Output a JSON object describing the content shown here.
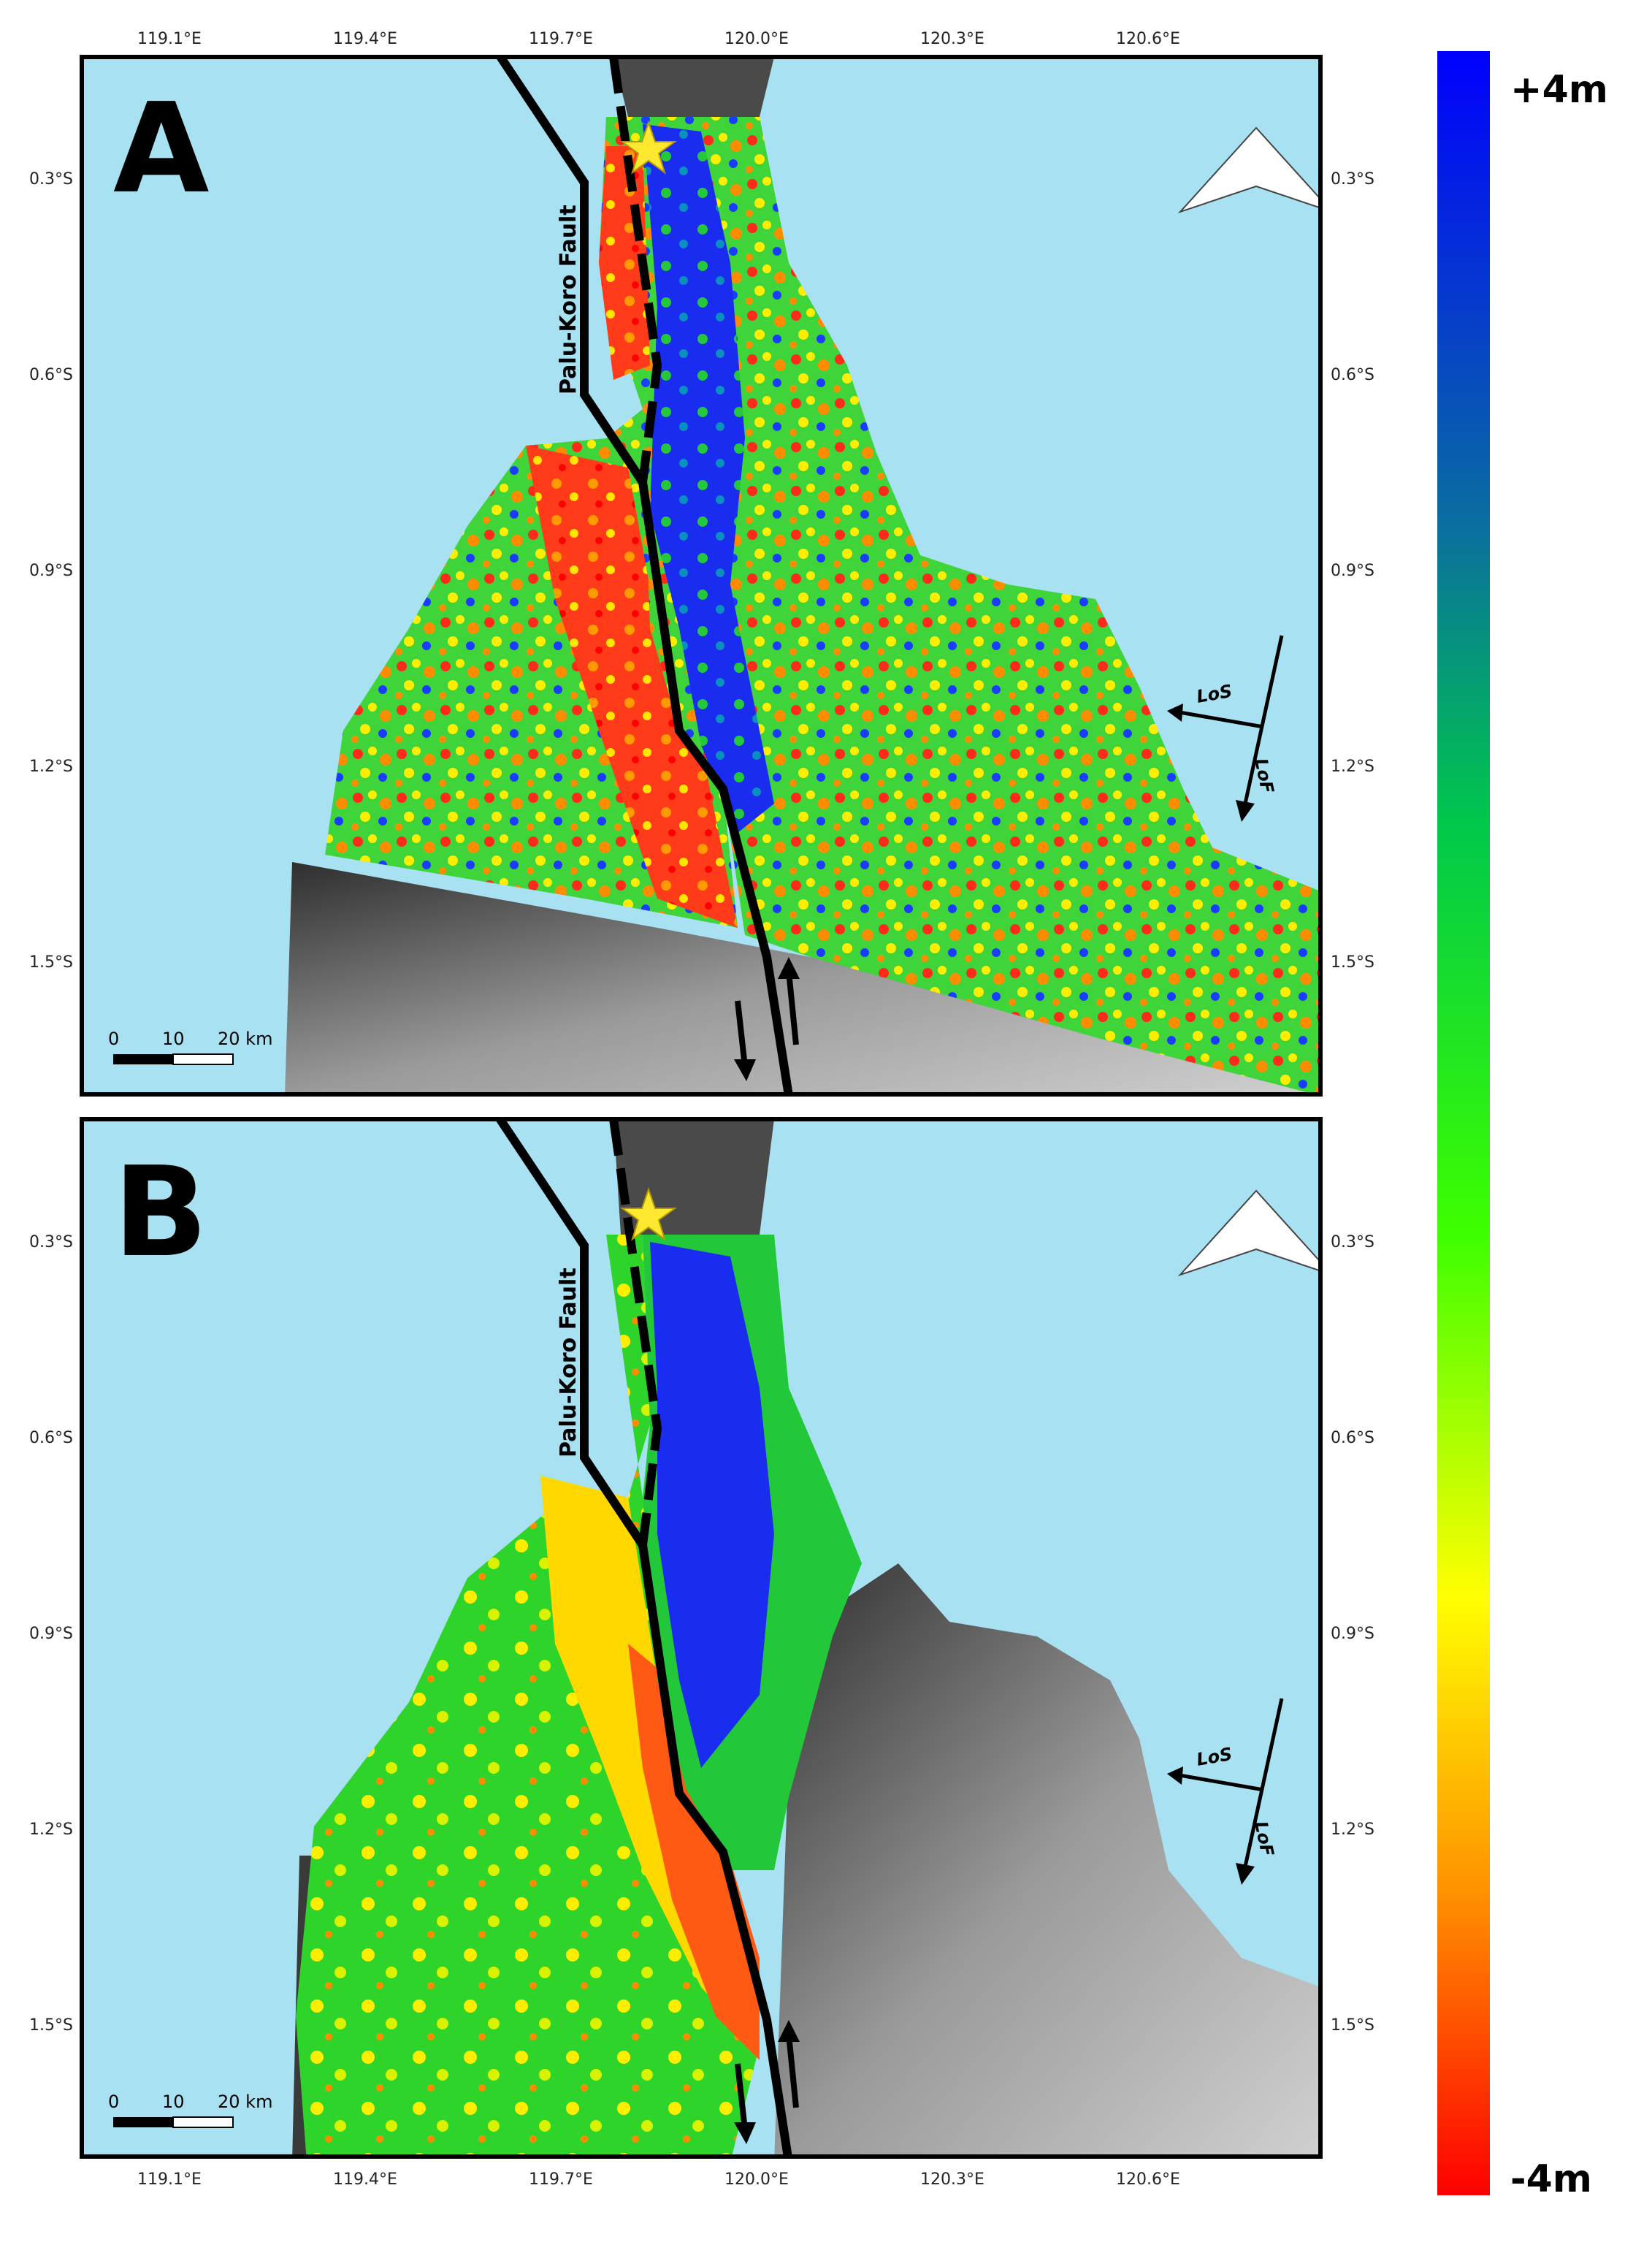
{
  "panels": [
    {
      "letter": "A",
      "fault_label": "Palu-Koro Fault"
    },
    {
      "letter": "B",
      "fault_label": "Palu-Koro Fault"
    }
  ],
  "longitude_ticks": [
    "119.1°E",
    "119.4°E",
    "119.7°E",
    "120.0°E",
    "120.3°E",
    "120.6°E"
  ],
  "latitude_ticks": [
    "0.3°S",
    "0.6°S",
    "0.9°S",
    "1.2°S",
    "1.5°S"
  ],
  "scale_bar": {
    "labels": [
      "0",
      "10",
      "20 km"
    ]
  },
  "geometry_arrows": {
    "look": "LoS",
    "flight": "LoF"
  },
  "colorbar": {
    "max_label": "+4m",
    "min_label": "-4m",
    "colors": [
      "#0000ff",
      "#008a78",
      "#00e600",
      "#ffff00",
      "#ff8c00",
      "#ff0000"
    ]
  },
  "colors": {
    "sea": "#a8e2f2",
    "land_dark": "#333333",
    "land_light": "#bdbdbd",
    "fault": "#000000",
    "epicenter": "#ffe830"
  }
}
